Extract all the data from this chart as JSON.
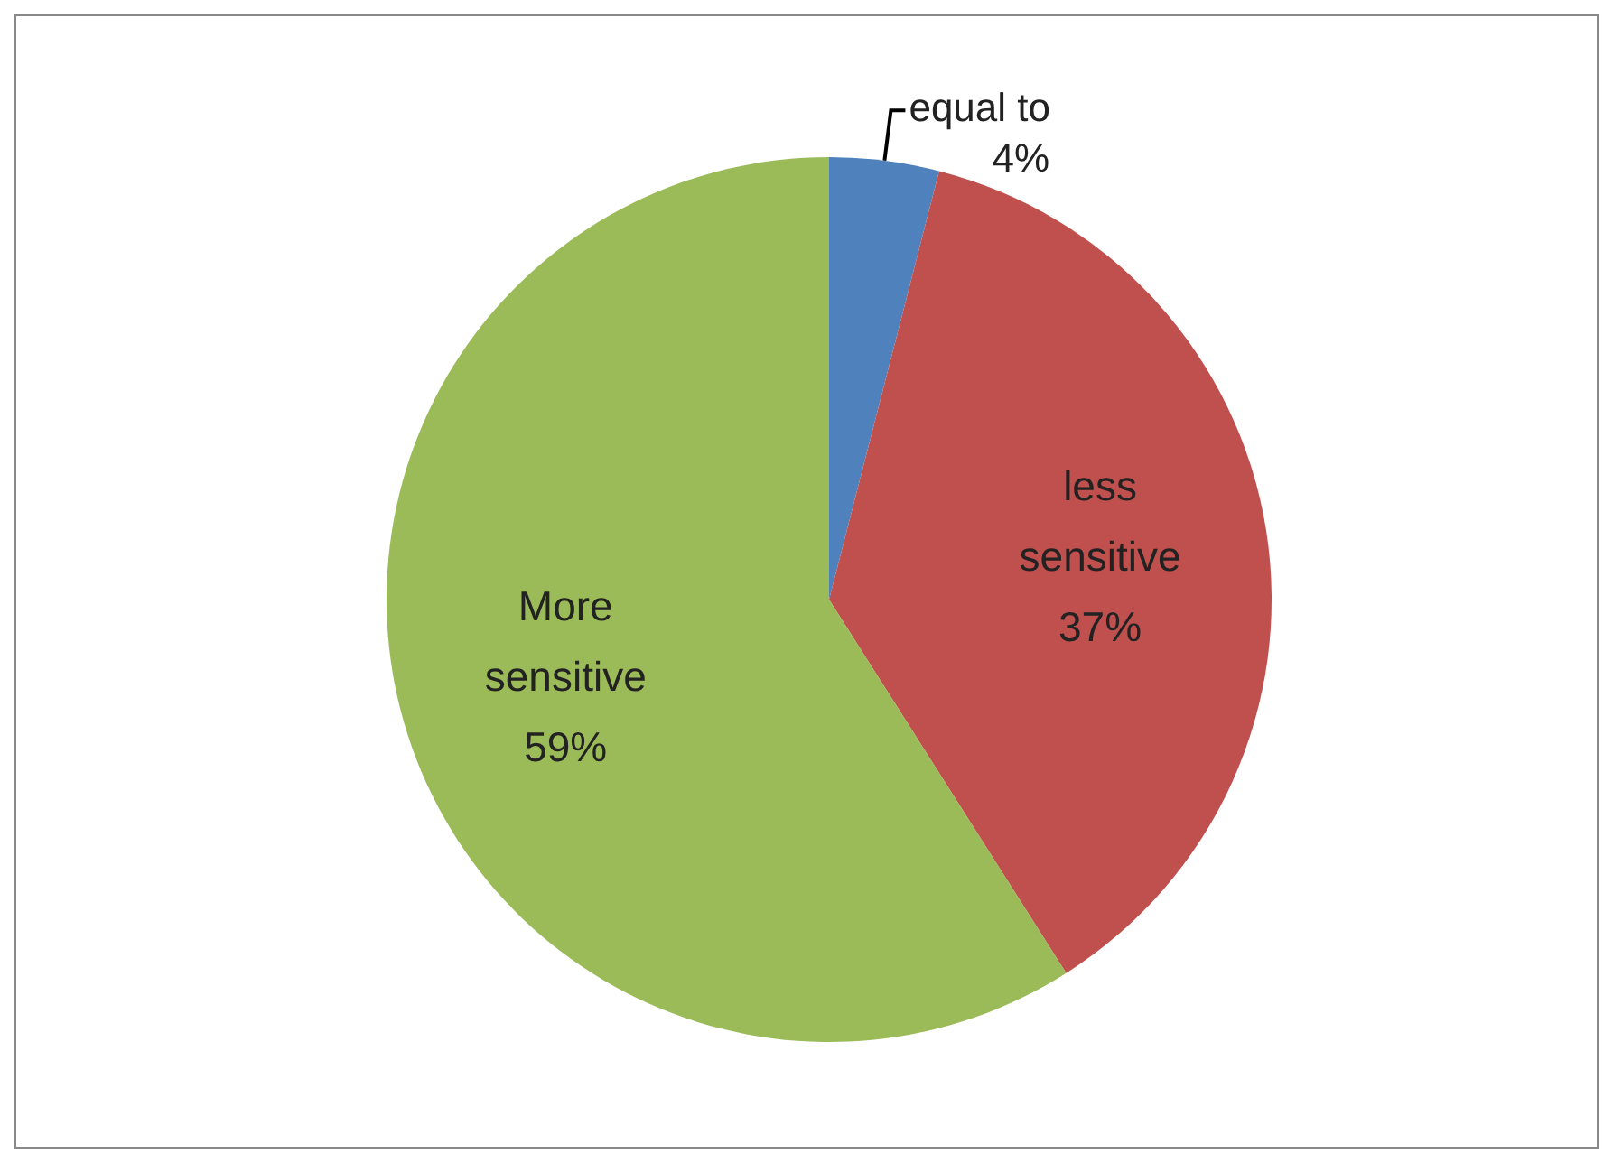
{
  "chart_data": {
    "type": "pie",
    "categories": [
      "equal to",
      "less sensitive",
      "More sensitive"
    ],
    "values": [
      4,
      37,
      59
    ],
    "colors": [
      "#4f81bd",
      "#c0504d",
      "#9bbb59"
    ],
    "value_labels": [
      "4%",
      "37%",
      "59%"
    ],
    "legend": false
  }
}
